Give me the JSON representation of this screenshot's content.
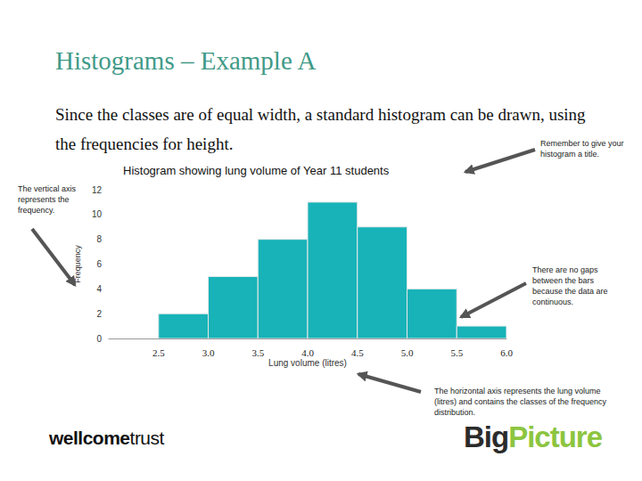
{
  "slide": {
    "heading": "Histograms – Example A",
    "intro": "Since the classes are of equal width, a standard histogram can be drawn, using the frequencies for height.",
    "logo_left": [
      "wellcome",
      "trust"
    ],
    "logo_right": [
      "Big",
      "Picture"
    ]
  },
  "chart_data": {
    "type": "histogram",
    "title": "Histogram showing lung volume of Year 11 students",
    "xlabel": "Lung volume (litres)",
    "ylabel": "Frequency",
    "bins": [
      2.5,
      3.0,
      3.5,
      4.0,
      4.5,
      5.0,
      5.5,
      6.0
    ],
    "values": [
      2,
      5,
      8,
      11,
      9,
      4,
      1
    ],
    "color": "#17b3b8",
    "xlim": [
      2.0,
      6.0
    ],
    "xticks": [
      2.5,
      {
        "value": 3,
        "label": "3.0"
      },
      3.5,
      {
        "value": 4,
        "label": "4.0"
      },
      4.5,
      {
        "value": 5,
        "label": "5.0"
      },
      5.5,
      {
        "value": 6,
        "label": "6.0"
      }
    ],
    "ylim": [
      0,
      12
    ],
    "yticks": [
      0,
      2,
      4,
      6,
      8,
      10,
      12
    ],
    "grid": false,
    "annotations": [
      "Remember to give your histogram a title.",
      "The vertical axis represents the frequency.",
      "There are no gaps between the bars because the data are continuous.",
      "The horizontal axis represents the lung volume (litres) and contains the classes of the frequency distribution."
    ]
  }
}
